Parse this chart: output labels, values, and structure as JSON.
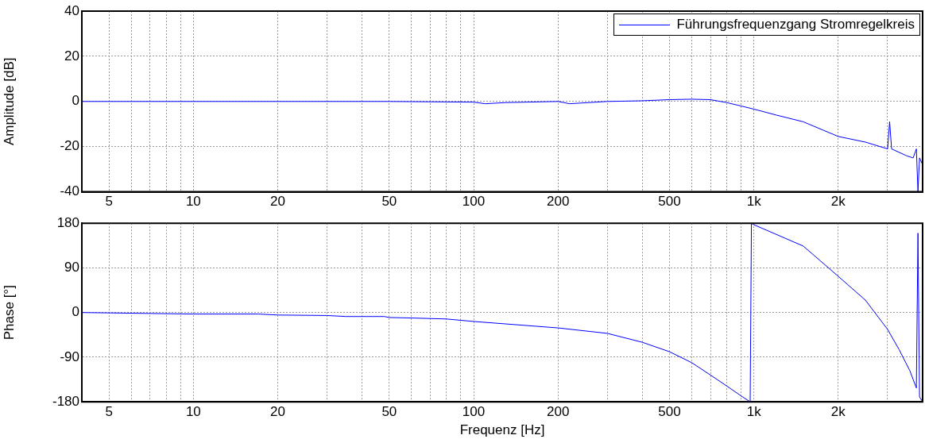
{
  "chart_data": [
    {
      "type": "line",
      "ylabel": "Amplitude [dB]",
      "log": "x",
      "grid": true,
      "legend": "top right",
      "marker": "none",
      "line_style": "solid",
      "xlim": [
        4,
        4000
      ],
      "ylim": [
        -40,
        40
      ],
      "yticks": [
        -40,
        -20,
        0,
        20,
        40
      ],
      "xticks": [
        {
          "value": 4,
          "label": null
        },
        5,
        {
          "value": 6,
          "label": null
        },
        {
          "value": 7,
          "label": null
        },
        {
          "value": 8,
          "label": null
        },
        {
          "value": 9,
          "label": null
        },
        10,
        20,
        {
          "value": 30,
          "label": null
        },
        {
          "value": 40,
          "label": null
        },
        50,
        {
          "value": 60,
          "label": null
        },
        {
          "value": 70,
          "label": null
        },
        {
          "value": 80,
          "label": null
        },
        {
          "value": 90,
          "label": null
        },
        100,
        200,
        {
          "value": 300,
          "label": null
        },
        {
          "value": 400,
          "label": null
        },
        500,
        {
          "value": 600,
          "label": null
        },
        {
          "value": 700,
          "label": null
        },
        {
          "value": 800,
          "label": null
        },
        {
          "value": 900,
          "label": null
        },
        {
          "value": 1000,
          "label": "1k"
        },
        {
          "value": 2000,
          "label": "2k"
        },
        {
          "value": 3000,
          "label": null
        }
      ],
      "series": [
        {
          "name": "Führungsfrequenzgang Stromregelkreis",
          "color": "#0000ff",
          "x": [
            4,
            10,
            50,
            100,
            110,
            130,
            200,
            220,
            300,
            400,
            500,
            600,
            700,
            800,
            900,
            1000,
            1200,
            1500,
            2000,
            2500,
            3000,
            3050,
            3100,
            3500,
            3700,
            3800,
            3850,
            3900,
            4000
          ],
          "values": [
            0,
            0,
            0,
            -0.3,
            -1,
            -0.5,
            0,
            -1,
            0,
            0.3,
            0.8,
            1,
            0.8,
            -0.5,
            -2,
            -3.4,
            -6,
            -9,
            -15.5,
            -18,
            -21,
            -9,
            -21,
            -24,
            -25,
            -21,
            -40,
            -25,
            -28
          ]
        }
      ]
    },
    {
      "type": "line",
      "xlabel": "Frequenz [Hz]",
      "ylabel": "Phase [°]",
      "log": "x",
      "grid": true,
      "marker": "none",
      "line_style": "solid",
      "xlim": [
        4,
        4000
      ],
      "ylim": [
        -180,
        180
      ],
      "yticks": [
        -180,
        -90,
        0,
        90,
        180
      ],
      "xticks": [
        {
          "value": 4,
          "label": null
        },
        5,
        {
          "value": 6,
          "label": null
        },
        {
          "value": 7,
          "label": null
        },
        {
          "value": 8,
          "label": null
        },
        {
          "value": 9,
          "label": null
        },
        10,
        20,
        {
          "value": 30,
          "label": null
        },
        {
          "value": 40,
          "label": null
        },
        50,
        {
          "value": 60,
          "label": null
        },
        {
          "value": 70,
          "label": null
        },
        {
          "value": 80,
          "label": null
        },
        {
          "value": 90,
          "label": null
        },
        100,
        200,
        {
          "value": 300,
          "label": null
        },
        {
          "value": 400,
          "label": null
        },
        500,
        {
          "value": 600,
          "label": null
        },
        {
          "value": 700,
          "label": null
        },
        {
          "value": 800,
          "label": null
        },
        {
          "value": 900,
          "label": null
        },
        {
          "value": 1000,
          "label": "1k"
        },
        {
          "value": 2000,
          "label": "2k"
        },
        {
          "value": 3000,
          "label": null
        }
      ],
      "series": [
        {
          "color": "#0000ff",
          "x": [
            4,
            10,
            17,
            20,
            30,
            35,
            48,
            50,
            60,
            80,
            100,
            200,
            300,
            400,
            500,
            600,
            700,
            800,
            900,
            970,
            980,
            1000,
            1500,
            2000,
            2500,
            3000,
            3300,
            3600,
            3800,
            3850,
            3900,
            4000
          ],
          "values": [
            0,
            -3,
            -3,
            -5,
            -6,
            -8,
            -8,
            -10,
            -11,
            -13,
            -18,
            -31,
            -42,
            -60,
            -79,
            -101,
            -126,
            -148,
            -168,
            -180,
            180,
            177,
            134,
            73,
            25,
            -34,
            -75,
            -117,
            -152,
            160,
            -170,
            -180
          ]
        }
      ]
    }
  ]
}
